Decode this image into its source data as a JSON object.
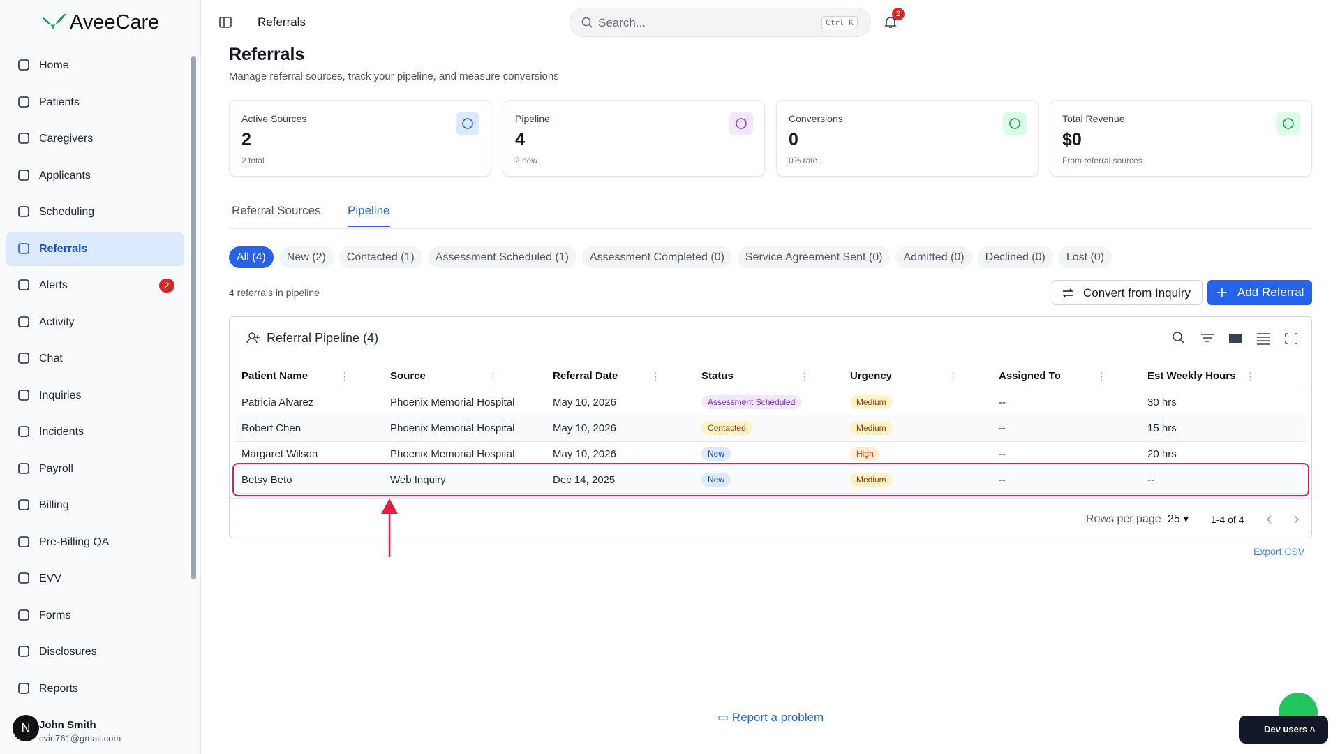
{
  "brand": "AveeCare",
  "sidebar": {
    "items": [
      "Home",
      "Patients",
      "Caregivers",
      "Applicants",
      "Scheduling",
      "Referrals",
      "Alerts",
      "Activity",
      "Chat",
      "Inquiries",
      "Incidents",
      "Payroll",
      "Billing",
      "Pre-Billing QA",
      "EVV",
      "Forms",
      "Disclosures",
      "Reports"
    ],
    "alerts_badge": "2"
  },
  "user": {
    "initial": "N",
    "name": "John Smith",
    "email": "cvin761@gmail.com"
  },
  "topbar": {
    "breadcrumb": "Referrals",
    "search_placeholder": "Search...",
    "shortcut": "Ctrl K",
    "notifications": "2"
  },
  "page": {
    "title": "Referrals",
    "subtitle": "Manage referral sources, track your pipeline, and measure conversions"
  },
  "stats": [
    {
      "label": "Active Sources",
      "value": "2",
      "note": "2 total"
    },
    {
      "label": "Pipeline",
      "value": "4",
      "note": "2 new"
    },
    {
      "label": "Conversions",
      "value": "0",
      "note": "0% rate"
    },
    {
      "label": "Total Revenue",
      "value": "$0",
      "note": "From referral sources"
    }
  ],
  "tabs": [
    "Referral Sources",
    "Pipeline"
  ],
  "filters": [
    "All (4)",
    "New (2)",
    "Contacted (1)",
    "Assessment Scheduled (1)",
    "Assessment Completed (0)",
    "Service Agreement Sent (0)",
    "Admitted (0)",
    "Declined (0)",
    "Lost (0)"
  ],
  "pipeline_count": "4 referrals in pipeline",
  "buttons": {
    "convert": "Convert from Inquiry",
    "add": "Add Referral"
  },
  "table": {
    "title": "Referral Pipeline (4)",
    "columns": [
      "Patient Name",
      "Source",
      "Referral Date",
      "Status",
      "Urgency",
      "Assigned To",
      "Est Weekly Hours"
    ],
    "rows": [
      [
        "Patricia Alvarez",
        "Phoenix Memorial Hospital",
        "May 10, 2026",
        {
          "text": "Assessment Scheduled",
          "bg": "#f3e8ff",
          "fg": "#7e22ce"
        },
        {
          "text": "Medium",
          "bg": "#fef3c7",
          "fg": "#92400e"
        },
        "--",
        "30 hrs"
      ],
      [
        "Robert Chen",
        "Phoenix Memorial Hospital",
        "May 10, 2026",
        {
          "text": "Contacted",
          "bg": "#fef3c7",
          "fg": "#92400e"
        },
        {
          "text": "Medium",
          "bg": "#fef3c7",
          "fg": "#92400e"
        },
        "--",
        "15 hrs"
      ],
      [
        "Margaret Wilson",
        "Phoenix Memorial Hospital",
        "May 10, 2026",
        {
          "text": "New",
          "bg": "#dbeafe",
          "fg": "#1e40af"
        },
        {
          "text": "High",
          "bg": "#ffedd5",
          "fg": "#c2410c"
        },
        "--",
        "20 hrs"
      ],
      [
        "Betsy Beto",
        "Web Inquiry",
        "Dec 14, 2025",
        {
          "text": "New",
          "bg": "#dbeafe",
          "fg": "#1e40af"
        },
        {
          "text": "Medium",
          "bg": "#fef3c7",
          "fg": "#92400e"
        },
        "--",
        "--"
      ]
    ]
  },
  "pagination": {
    "label": "Rows per page",
    "size": "25",
    "range": "1-4 of 4"
  },
  "export": "Export CSV",
  "report": "Report a problem",
  "dev": "Dev users"
}
